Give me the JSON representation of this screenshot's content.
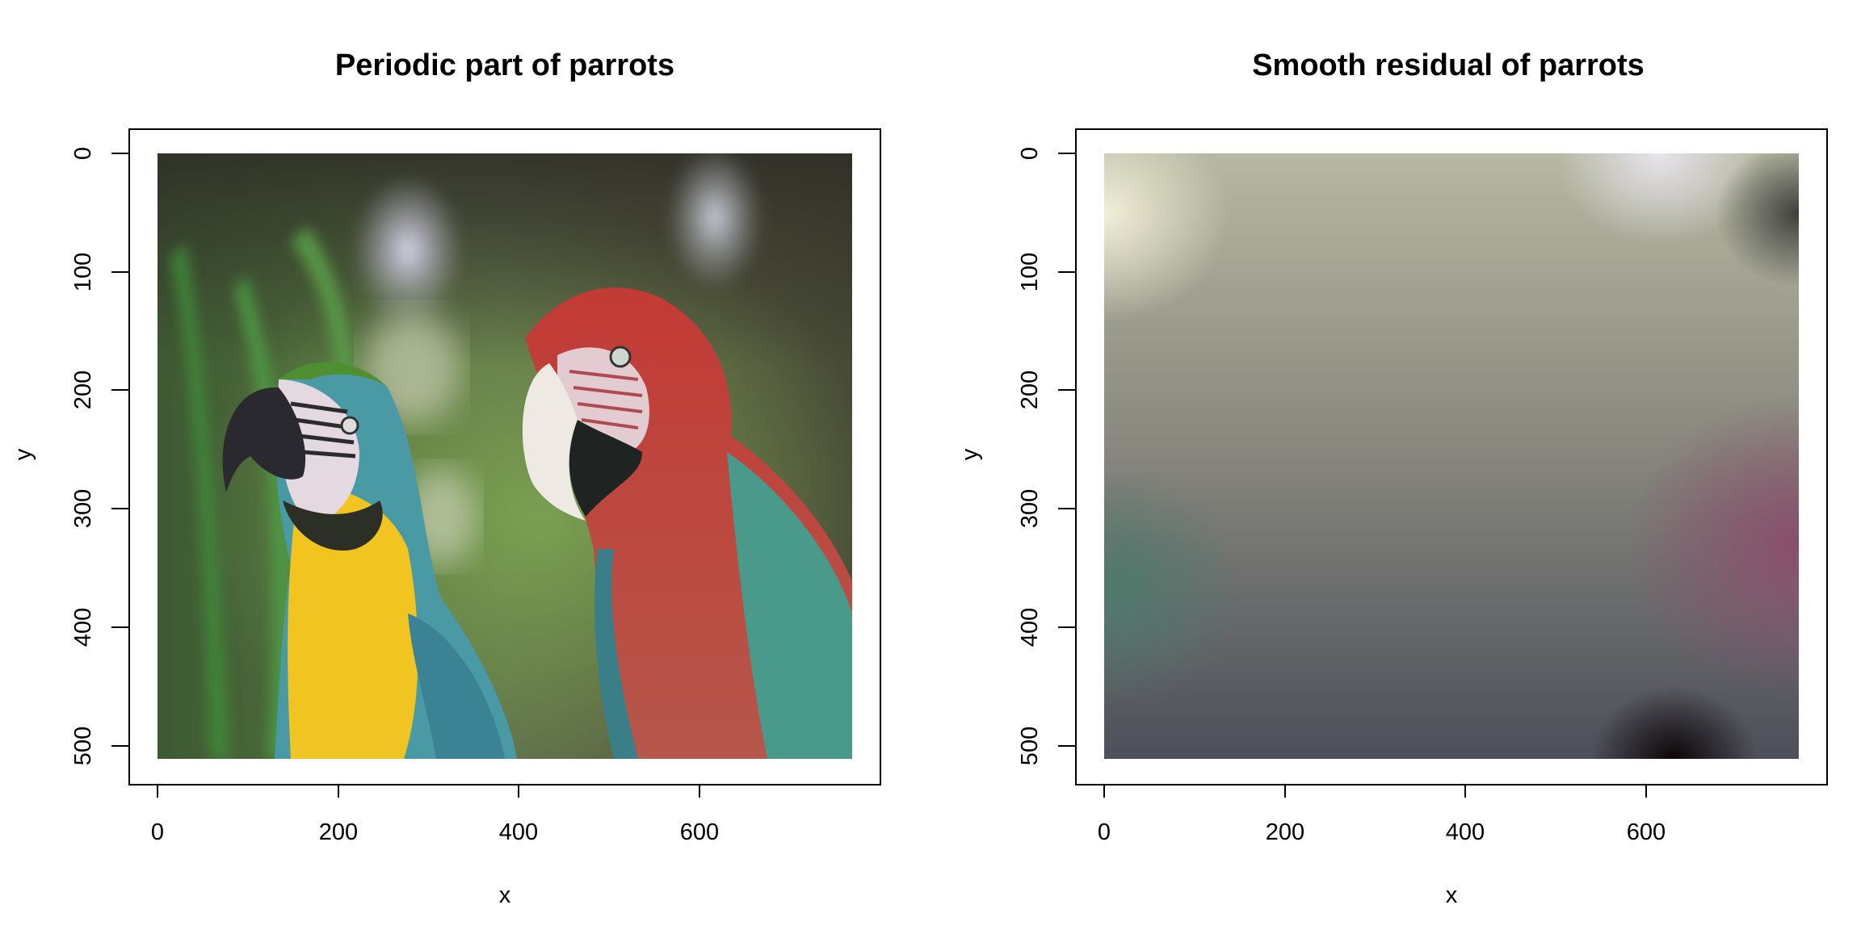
{
  "chart_data": [
    {
      "type": "heatmap",
      "title": "Periodic part of parrots",
      "xlabel": "x",
      "ylabel": "y",
      "xlim": [
        0,
        768
      ],
      "ylim": [
        512,
        0
      ],
      "x_ticks": [
        0,
        200,
        400,
        600
      ],
      "y_ticks": [
        0,
        100,
        200,
        300,
        400,
        500
      ],
      "x_tick_labels": [
        "0",
        "200",
        "400",
        "600"
      ],
      "y_tick_labels": [
        "0",
        "100",
        "200",
        "300",
        "400",
        "500"
      ],
      "y_axis_inverted": true,
      "image": "raster"
    },
    {
      "type": "heatmap",
      "title": "Smooth residual of parrots",
      "xlabel": "x",
      "ylabel": "y",
      "xlim": [
        0,
        768
      ],
      "ylim": [
        512,
        0
      ],
      "x_ticks": [
        0,
        200,
        400,
        600
      ],
      "y_ticks": [
        0,
        100,
        200,
        300,
        400,
        500
      ],
      "x_tick_labels": [
        "0",
        "200",
        "400",
        "600"
      ],
      "y_tick_labels": [
        "0",
        "100",
        "200",
        "300",
        "400",
        "500"
      ],
      "y_axis_inverted": true,
      "image": "raster"
    }
  ]
}
